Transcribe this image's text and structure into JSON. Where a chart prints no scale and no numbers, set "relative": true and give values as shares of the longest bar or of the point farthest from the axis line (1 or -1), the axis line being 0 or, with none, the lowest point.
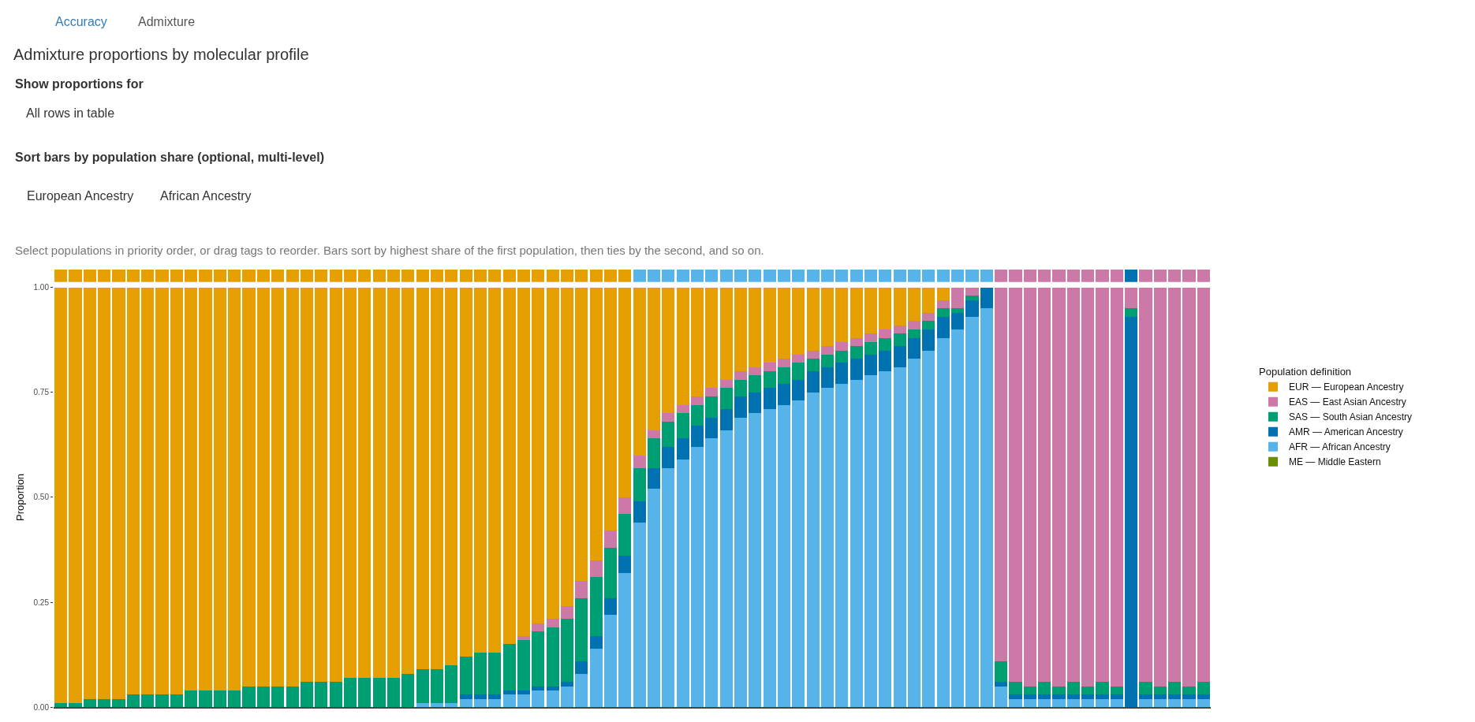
{
  "chart_data": [
    {
      "type": "bar",
      "relative": true,
      "tick_labels": false,
      "title": "Admixture proportions by molecular profile",
      "categories": [
        null,
        null,
        null,
        null,
        null,
        null,
        null,
        null,
        null,
        null,
        null,
        null,
        null,
        null,
        null,
        null,
        null,
        null,
        null,
        null,
        null,
        null,
        null,
        null,
        null,
        null,
        null,
        null,
        null,
        null,
        null,
        null,
        null,
        null,
        null,
        null,
        null,
        null,
        null,
        null,
        null,
        null,
        null,
        null,
        null,
        null,
        null,
        null,
        null,
        null,
        null,
        null,
        null,
        null,
        null,
        null,
        null,
        null,
        null,
        null,
        null,
        null,
        null,
        null,
        null,
        null,
        null,
        null,
        null,
        null,
        null,
        null,
        null,
        null,
        null,
        null,
        null,
        null,
        null,
        null
      ],
      "values": [
        1,
        1,
        1,
        1,
        1,
        1,
        1,
        1,
        1,
        1,
        1,
        1,
        1,
        1,
        1,
        1,
        1,
        1,
        1,
        1,
        1,
        1,
        1,
        1,
        1,
        1,
        1,
        1,
        1,
        1,
        1,
        1,
        1,
        1,
        1,
        1,
        1,
        1,
        1,
        1,
        1,
        1,
        1,
        1,
        1,
        1,
        1,
        1,
        1,
        1,
        1,
        1,
        1,
        1,
        1,
        1,
        1,
        1,
        1,
        1,
        1,
        1,
        1,
        1,
        1,
        1,
        1,
        1,
        1,
        1,
        1,
        1,
        1,
        1,
        1,
        1,
        1,
        1,
        1,
        1
      ],
      "colors": [
        "#e69f00",
        "#e69f00",
        "#e69f00",
        "#e69f00",
        "#e69f00",
        "#e69f00",
        "#e69f00",
        "#e69f00",
        "#e69f00",
        "#e69f00",
        "#e69f00",
        "#e69f00",
        "#e69f00",
        "#e69f00",
        "#e69f00",
        "#e69f00",
        "#e69f00",
        "#e69f00",
        "#e69f00",
        "#e69f00",
        "#e69f00",
        "#e69f00",
        "#e69f00",
        "#e69f00",
        "#e69f00",
        "#e69f00",
        "#e69f00",
        "#e69f00",
        "#e69f00",
        "#e69f00",
        "#e69f00",
        "#e69f00",
        "#e69f00",
        "#e69f00",
        "#e69f00",
        "#e69f00",
        "#e69f00",
        "#e69f00",
        "#e69f00",
        "#e69f00",
        "#56b4e9",
        "#56b4e9",
        "#56b4e9",
        "#56b4e9",
        "#56b4e9",
        "#56b4e9",
        "#56b4e9",
        "#56b4e9",
        "#56b4e9",
        "#56b4e9",
        "#56b4e9",
        "#56b4e9",
        "#56b4e9",
        "#56b4e9",
        "#56b4e9",
        "#56b4e9",
        "#56b4e9",
        "#56b4e9",
        "#56b4e9",
        "#56b4e9",
        "#56b4e9",
        "#56b4e9",
        "#56b4e9",
        "#56b4e9",
        "#56b4e9",
        "#cc79a7",
        "#cc79a7",
        "#cc79a7",
        "#cc79a7",
        "#cc79a7",
        "#cc79a7",
        "#cc79a7",
        "#cc79a7",
        "#cc79a7",
        "#0072b2",
        "#cc79a7",
        "#cc79a7",
        "#cc79a7",
        "#cc79a7",
        "#cc79a7"
      ]
    },
    {
      "type": "bar",
      "stacked": true,
      "ylabel": "Proportion",
      "legend_title": "Population definition",
      "legend": "right",
      "tick_labels": "y",
      "ylim": [
        0,
        1
      ],
      "yticks": [
        {
          "value": 0,
          "label": "0.00"
        },
        {
          "value": 0.25,
          "label": "0.25"
        },
        {
          "value": 0.5,
          "label": "0.50"
        },
        {
          "value": 0.75,
          "label": "0.75"
        },
        {
          "value": 1,
          "label": "1.00"
        }
      ],
      "annotations": [
        "Accuracy",
        "Admixture",
        "Show proportions for",
        "All rows in table",
        "Sort bars by population share (optional, multi-level)",
        "European Ancestry",
        "African Ancestry",
        "Select populations in priority order, or drag tags to reorder. Bars sort by highest share of the first population, then ties by the second, and so on."
      ],
      "categories": [
        null,
        null,
        null,
        null,
        null,
        null,
        null,
        null,
        null,
        null,
        null,
        null,
        null,
        null,
        null,
        null,
        null,
        null,
        null,
        null,
        null,
        null,
        null,
        null,
        null,
        null,
        null,
        null,
        null,
        null,
        null,
        null,
        null,
        null,
        null,
        null,
        null,
        null,
        null,
        null,
        null,
        null,
        null,
        null,
        null,
        null,
        null,
        null,
        null,
        null,
        null,
        null,
        null,
        null,
        null,
        null,
        null,
        null,
        null,
        null,
        null,
        null,
        null,
        null,
        null,
        null,
        null,
        null,
        null,
        null,
        null,
        null,
        null,
        null,
        null,
        null,
        null,
        null,
        null,
        null
      ],
      "series": [
        {
          "name": "ME — Middle Eastern",
          "color": "#6b8e00",
          "values": [
            0,
            0,
            0,
            0,
            0,
            0,
            0,
            0,
            0,
            0,
            0,
            0,
            0,
            0,
            0,
            0,
            0,
            0,
            0,
            0,
            0,
            0,
            0,
            0,
            0,
            0,
            0,
            0,
            0,
            0,
            0,
            0,
            0,
            0,
            0,
            0,
            0,
            0,
            0,
            0,
            0,
            0,
            0,
            0,
            0,
            0,
            0,
            0,
            0,
            0,
            0,
            0,
            0,
            0,
            0,
            0,
            0,
            0,
            0,
            0,
            0,
            0,
            0,
            0,
            0,
            0,
            0,
            0,
            0,
            0,
            0,
            0,
            0,
            0,
            0,
            0,
            0,
            0,
            0,
            0
          ]
        },
        {
          "name": "AFR — African Ancestry",
          "color": "#56b4e9",
          "values": [
            0,
            0,
            0,
            0,
            0,
            0,
            0,
            0,
            0,
            0,
            0,
            0,
            0,
            0,
            0,
            0,
            0,
            0,
            0,
            0,
            0,
            0,
            0,
            0,
            0,
            0.01,
            0.01,
            0.01,
            0.02,
            0.02,
            0.02,
            0.03,
            0.03,
            0.04,
            0.04,
            0.05,
            0.08,
            0.14,
            0.22,
            0.32,
            0.44,
            0.52,
            0.57,
            0.59,
            0.62,
            0.64,
            0.66,
            0.69,
            0.7,
            0.71,
            0.72,
            0.73,
            0.75,
            0.76,
            0.77,
            0.78,
            0.79,
            0.8,
            0.81,
            0.83,
            0.85,
            0.88,
            0.9,
            0.93,
            0.95,
            0.05,
            0.02,
            0.02,
            0.02,
            0.02,
            0.02,
            0.02,
            0.02,
            0.02,
            0,
            0.02,
            0.02,
            0.02,
            0.02,
            0.02
          ]
        },
        {
          "name": "AMR — American Ancestry",
          "color": "#0072b2",
          "values": [
            0,
            0,
            0,
            0,
            0,
            0,
            0,
            0,
            0,
            0,
            0,
            0,
            0,
            0,
            0,
            0,
            0,
            0,
            0,
            0,
            0,
            0,
            0,
            0,
            0,
            0,
            0,
            0,
            0.01,
            0.01,
            0.01,
            0.01,
            0.01,
            0.01,
            0.01,
            0.01,
            0.03,
            0.03,
            0.04,
            0.04,
            0.05,
            0.05,
            0.05,
            0.05,
            0.05,
            0.05,
            0.05,
            0.05,
            0.05,
            0.05,
            0.05,
            0.05,
            0.05,
            0.05,
            0.05,
            0.05,
            0.05,
            0.05,
            0.05,
            0.05,
            0.05,
            0.05,
            0.04,
            0.04,
            0.05,
            0.01,
            0.01,
            0.01,
            0.01,
            0.01,
            0.01,
            0.01,
            0.01,
            0.01,
            0.93,
            0.01,
            0.01,
            0.01,
            0.01,
            0.01
          ]
        },
        {
          "name": "SAS — South Asian Ancestry",
          "color": "#009e73",
          "values": [
            0.01,
            0.01,
            0.02,
            0.02,
            0.02,
            0.03,
            0.03,
            0.03,
            0.03,
            0.04,
            0.04,
            0.04,
            0.04,
            0.05,
            0.05,
            0.05,
            0.05,
            0.06,
            0.06,
            0.06,
            0.07,
            0.07,
            0.07,
            0.07,
            0.08,
            0.08,
            0.08,
            0.09,
            0.09,
            0.1,
            0.1,
            0.11,
            0.12,
            0.13,
            0.14,
            0.15,
            0.15,
            0.14,
            0.12,
            0.1,
            0.08,
            0.07,
            0.06,
            0.06,
            0.05,
            0.05,
            0.05,
            0.04,
            0.04,
            0.04,
            0.04,
            0.04,
            0.03,
            0.03,
            0.03,
            0.03,
            0.03,
            0.03,
            0.03,
            0.02,
            0.02,
            0.02,
            0.01,
            0.01,
            0,
            0.05,
            0.03,
            0.02,
            0.03,
            0.02,
            0.03,
            0.02,
            0.03,
            0.02,
            0.02,
            0.03,
            0.02,
            0.03,
            0.02,
            0.03
          ]
        },
        {
          "name": "EAS — East Asian Ancestry",
          "color": "#cc79a7",
          "values": [
            0,
            0,
            0,
            0,
            0,
            0,
            0,
            0,
            0,
            0,
            0,
            0,
            0,
            0,
            0,
            0,
            0,
            0,
            0,
            0,
            0,
            0,
            0,
            0,
            0,
            0,
            0,
            0,
            0,
            0,
            0,
            0,
            0.01,
            0.02,
            0.02,
            0.03,
            0.04,
            0.04,
            0.04,
            0.04,
            0.03,
            0.02,
            0.02,
            0.02,
            0.02,
            0.02,
            0.02,
            0.02,
            0.02,
            0.02,
            0.02,
            0.02,
            0.02,
            0.02,
            0.02,
            0.02,
            0.02,
            0.02,
            0.02,
            0.02,
            0.02,
            0.02,
            0.05,
            0.02,
            0,
            0.89,
            0.94,
            0.95,
            0.94,
            0.95,
            0.94,
            0.95,
            0.94,
            0.95,
            0.05,
            0.94,
            0.95,
            0.94,
            0.95,
            0.94
          ]
        },
        {
          "name": "EUR — European Ancestry",
          "color": "#e69f00",
          "values": [
            0.99,
            0.99,
            0.98,
            0.98,
            0.98,
            0.97,
            0.97,
            0.97,
            0.97,
            0.96,
            0.96,
            0.96,
            0.96,
            0.95,
            0.95,
            0.95,
            0.95,
            0.94,
            0.94,
            0.94,
            0.93,
            0.93,
            0.93,
            0.93,
            0.92,
            0.91,
            0.91,
            0.9,
            0.88,
            0.87,
            0.87,
            0.85,
            0.83,
            0.8,
            0.79,
            0.76,
            0.7,
            0.65,
            0.58,
            0.5,
            0.4,
            0.34,
            0.3,
            0.28,
            0.26,
            0.24,
            0.22,
            0.2,
            0.19,
            0.18,
            0.17,
            0.16,
            0.15,
            0.14,
            0.13,
            0.12,
            0.11,
            0.1,
            0.09,
            0.08,
            0.06,
            0.03,
            0,
            0,
            0,
            0,
            0,
            0,
            0,
            0,
            0,
            0,
            0,
            0,
            0,
            0,
            0,
            0,
            0,
            0
          ]
        }
      ]
    }
  ]
}
